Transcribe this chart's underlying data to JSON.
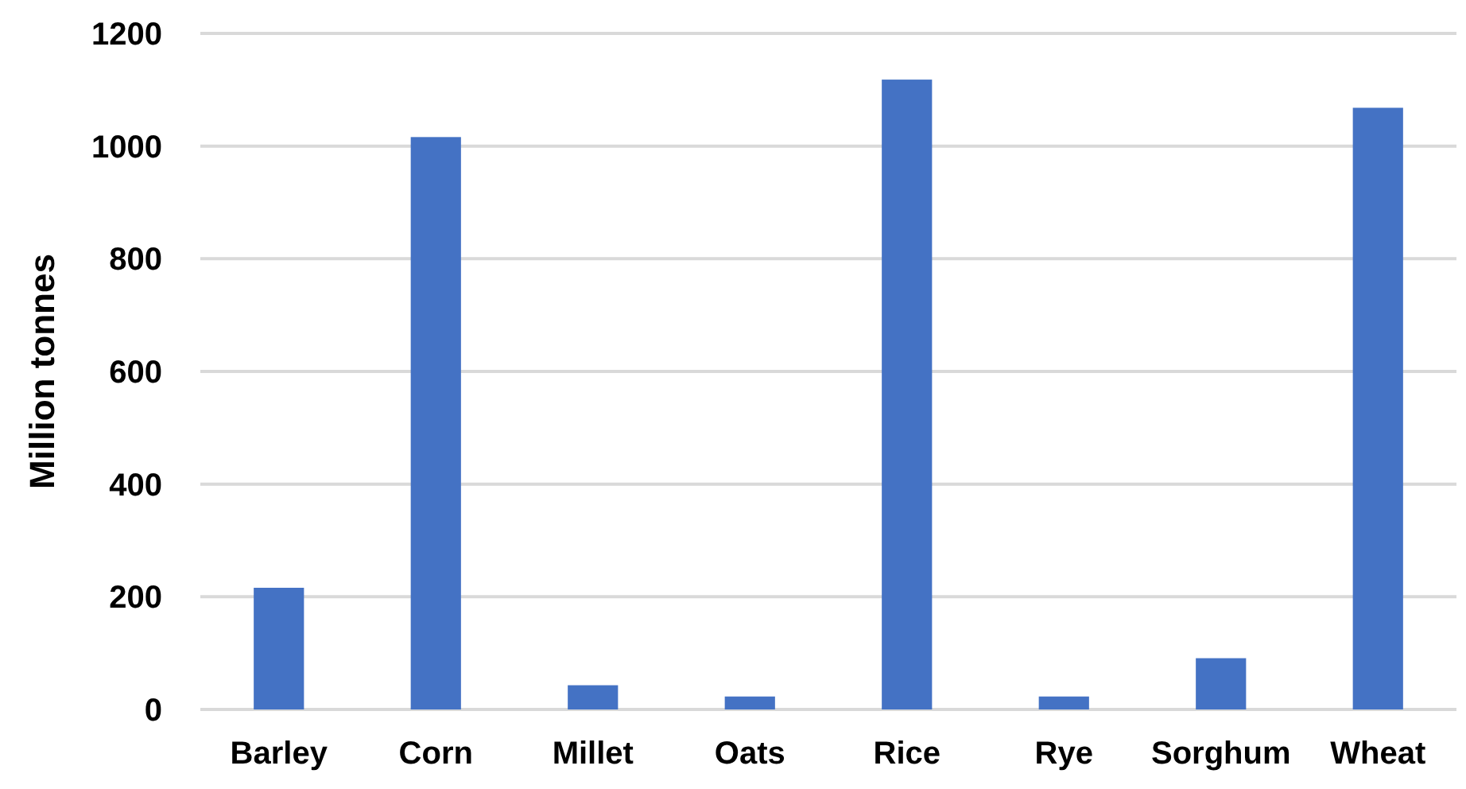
{
  "chart_data": {
    "type": "bar",
    "ylabel": "Million tonnes",
    "categories": [
      "Barley",
      "Corn",
      "Millet",
      "Oats",
      "Rice",
      "Rye",
      "Sorghum",
      "Wheat"
    ],
    "values": [
      216,
      1016,
      43,
      23,
      1118,
      23,
      91,
      1068
    ],
    "color": "#4472c4",
    "ylim": [
      0,
      1200
    ],
    "yticks": [
      0,
      200,
      400,
      600,
      800,
      1000,
      1200
    ],
    "grid": "y"
  }
}
